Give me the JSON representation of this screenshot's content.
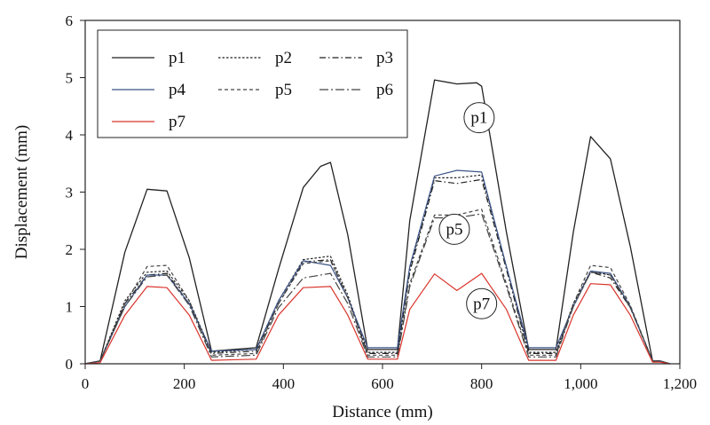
{
  "chart_data": {
    "type": "line",
    "title": "",
    "xlabel": "Distance (mm)",
    "ylabel": "Displacement (mm)",
    "xlim": [
      0,
      1200
    ],
    "ylim": [
      0,
      6
    ],
    "xticks": [
      0,
      200,
      400,
      600,
      800,
      1000,
      1200
    ],
    "xtick_labels": [
      "0",
      "200",
      "400",
      "600",
      "800",
      "1,000",
      "1,200"
    ],
    "yticks": [
      0,
      1,
      2,
      3,
      4,
      5,
      6
    ],
    "ytick_labels": [
      "0",
      "1",
      "2",
      "3",
      "4",
      "5",
      "6"
    ],
    "grid": false,
    "legend_position": "top-left",
    "series": [
      {
        "name": "p1",
        "color": "#222222",
        "dash": "solid",
        "x": [
          0,
          30,
          80,
          125,
          165,
          210,
          255,
          345,
          390,
          440,
          475,
          495,
          530,
          570,
          630,
          655,
          705,
          750,
          790,
          800,
          850,
          895,
          950,
          985,
          1020,
          1060,
          1100,
          1145,
          1160,
          1180
        ],
        "y": [
          0,
          0.05,
          1.95,
          3.05,
          3.02,
          1.85,
          0.22,
          0.28,
          1.65,
          3.08,
          3.45,
          3.52,
          2.25,
          0.25,
          0.25,
          2.5,
          4.96,
          4.89,
          4.91,
          4.85,
          2.3,
          0.25,
          0.25,
          2.3,
          3.97,
          3.58,
          2.05,
          0.05,
          0.05,
          0.0
        ]
      },
      {
        "name": "p2",
        "color": "#222222",
        "dash": "dotted",
        "x": [
          0,
          30,
          80,
          125,
          165,
          210,
          255,
          345,
          390,
          440,
          495,
          530,
          570,
          630,
          655,
          705,
          750,
          800,
          850,
          895,
          950,
          985,
          1020,
          1060,
          1100,
          1145,
          1160,
          1180
        ],
        "y": [
          0,
          0.05,
          1.1,
          1.6,
          1.62,
          1.1,
          0.2,
          0.25,
          1.1,
          1.82,
          1.88,
          1.2,
          0.2,
          0.2,
          1.65,
          3.25,
          3.25,
          3.3,
          1.7,
          0.2,
          0.2,
          1.05,
          1.62,
          1.55,
          1.0,
          0.05,
          0.05,
          0.0
        ]
      },
      {
        "name": "p3",
        "color": "#222222",
        "dash": "dashdot",
        "x": [
          0,
          30,
          80,
          125,
          165,
          210,
          255,
          345,
          390,
          440,
          495,
          530,
          570,
          630,
          655,
          705,
          750,
          800,
          850,
          895,
          950,
          985,
          1020,
          1060,
          1100,
          1145,
          1160,
          1180
        ],
        "y": [
          0,
          0.05,
          1.05,
          1.55,
          1.58,
          1.05,
          0.18,
          0.22,
          1.05,
          1.78,
          1.82,
          1.15,
          0.18,
          0.18,
          1.6,
          3.2,
          3.15,
          3.22,
          1.65,
          0.18,
          0.18,
          1.0,
          1.6,
          1.5,
          0.98,
          0.05,
          0.05,
          0.0
        ]
      },
      {
        "name": "p4",
        "color": "#3c5488",
        "dash": "solid",
        "x": [
          0,
          30,
          80,
          125,
          165,
          210,
          255,
          345,
          390,
          440,
          495,
          530,
          570,
          630,
          655,
          705,
          750,
          800,
          850,
          895,
          950,
          985,
          1020,
          1060,
          1100,
          1145,
          1160,
          1180
        ],
        "y": [
          0,
          0.05,
          1.0,
          1.55,
          1.55,
          1.05,
          0.22,
          0.25,
          1.1,
          1.8,
          1.72,
          1.15,
          0.28,
          0.28,
          1.7,
          3.28,
          3.38,
          3.35,
          1.7,
          0.28,
          0.28,
          1.0,
          1.62,
          1.58,
          1.0,
          0.05,
          0.05,
          0.0
        ]
      },
      {
        "name": "p5",
        "color": "#444444",
        "dash": "dashed",
        "x": [
          0,
          30,
          80,
          125,
          165,
          210,
          255,
          345,
          390,
          440,
          495,
          530,
          570,
          630,
          655,
          705,
          750,
          800,
          850,
          895,
          950,
          985,
          1020,
          1060,
          1100,
          1145,
          1160,
          1180
        ],
        "y": [
          0,
          0.05,
          1.05,
          1.7,
          1.72,
          1.1,
          0.15,
          0.18,
          1.05,
          1.75,
          1.8,
          1.15,
          0.15,
          0.15,
          1.4,
          2.6,
          2.6,
          2.7,
          1.4,
          0.15,
          0.15,
          1.05,
          1.72,
          1.68,
          1.02,
          0.05,
          0.05,
          0.0
        ]
      },
      {
        "name": "p6",
        "color": "#444444",
        "dash": "longdashdot",
        "x": [
          0,
          30,
          80,
          125,
          165,
          210,
          255,
          345,
          390,
          440,
          495,
          530,
          570,
          630,
          655,
          705,
          750,
          800,
          850,
          895,
          950,
          985,
          1020,
          1060,
          1100,
          1145,
          1160,
          1180
        ],
        "y": [
          0,
          0.05,
          1.0,
          1.52,
          1.55,
          1.02,
          0.12,
          0.15,
          0.98,
          1.5,
          1.58,
          1.05,
          0.12,
          0.12,
          1.35,
          2.55,
          2.55,
          2.62,
          1.35,
          0.12,
          0.12,
          1.0,
          1.6,
          1.55,
          0.98,
          0.05,
          0.05,
          0.0
        ]
      },
      {
        "name": "p7",
        "color": "#d9342b",
        "dash": "solid",
        "x": [
          0,
          30,
          80,
          125,
          165,
          210,
          255,
          345,
          390,
          440,
          495,
          530,
          570,
          630,
          655,
          705,
          750,
          800,
          850,
          895,
          950,
          985,
          1020,
          1060,
          1100,
          1145,
          1160,
          1180
        ],
        "y": [
          0,
          0.02,
          0.85,
          1.35,
          1.33,
          0.85,
          0.06,
          0.08,
          0.85,
          1.33,
          1.35,
          0.85,
          0.08,
          0.08,
          0.95,
          1.57,
          1.28,
          1.58,
          0.95,
          0.06,
          0.06,
          0.85,
          1.4,
          1.38,
          0.85,
          0.03,
          0.03,
          0.0
        ]
      }
    ],
    "annotations": [
      {
        "text": "p1",
        "x": 795,
        "y": 4.3
      },
      {
        "text": "p5",
        "x": 745,
        "y": 2.35
      },
      {
        "text": "p7",
        "x": 800,
        "y": 1.05
      }
    ]
  }
}
